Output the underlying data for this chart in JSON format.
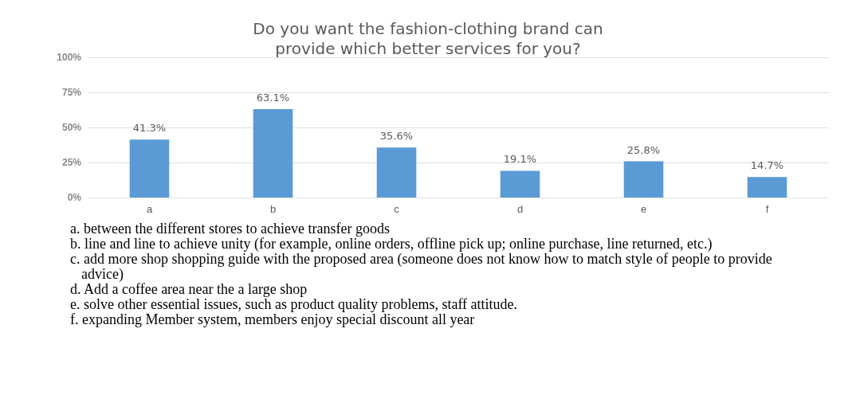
{
  "chart_data": {
    "type": "bar",
    "title": "Do you want the fashion-clothing brand can\nprovide which better services for you?",
    "categories": [
      "a",
      "b",
      "c",
      "d",
      "e",
      "f"
    ],
    "values": [
      41.3,
      63.1,
      35.6,
      19.1,
      25.8,
      14.7
    ],
    "value_labels": [
      "41.3%",
      "63.1%",
      "35.6%",
      "19.1%",
      "25.8%",
      "14.7%"
    ],
    "color": "#5b9bd5",
    "ylim": [
      0,
      100
    ],
    "yticks": [
      {
        "value": 0,
        "label": "0%"
      },
      {
        "value": 25,
        "label": "25%"
      },
      {
        "value": 50,
        "label": "50%"
      },
      {
        "value": 75,
        "label": "75%"
      },
      {
        "value": 100,
        "label": "100%"
      }
    ],
    "grid": "y",
    "annotations": [
      "a. between the different stores to achieve transfer goods",
      "b. line and line to achieve unity (for example, online orders, offline pick up; online purchase, line returned, etc.)",
      "c. add more shop shopping guide with the proposed area (someone does not know how to match style of people to provide advice)",
      "d. Add a coffee area near the a large shop",
      "e. solve other essential issues, such as product quality problems, staff attitude.",
      "f. expanding Member system, members enjoy special discount all year"
    ]
  }
}
